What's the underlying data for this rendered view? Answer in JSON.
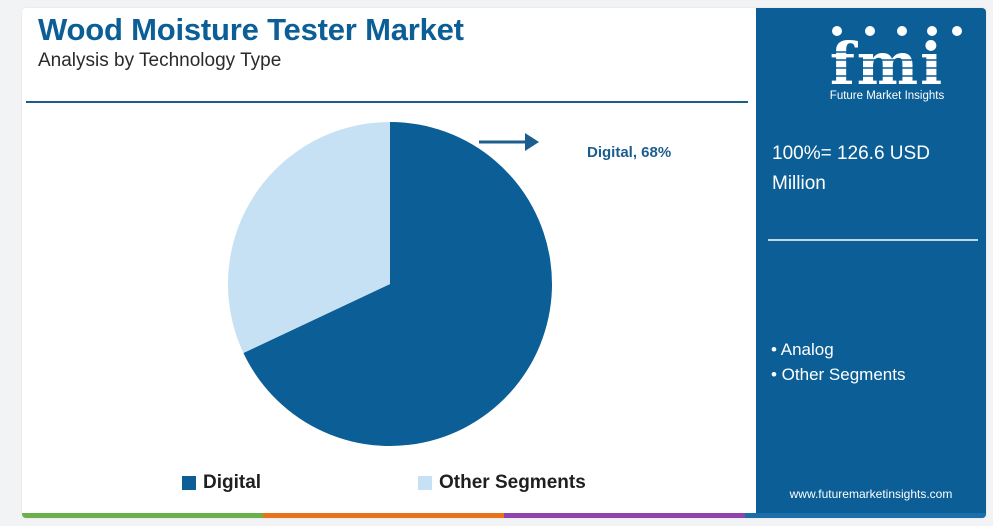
{
  "header": {
    "title": "Wood Moisture Tester Market",
    "subtitle": "Analysis by Technology Type"
  },
  "callout": {
    "label": "Digital, 68%"
  },
  "side_panel": {
    "logo_text": "fmi",
    "logo_subtitle": "Future Market Insights",
    "total": "100%= 126.6 USD Million",
    "bullets": [
      "• Analog",
      "• Other Segments"
    ],
    "website": "www.futuremarketinsights.com"
  },
  "colors": {
    "digital": "#0b5e96",
    "other_segments": "#c6e1f3",
    "panel": "#0b5e96",
    "bottom_bar": [
      "#6ab04c",
      "#e8731b",
      "#8e44ad",
      "#1b6ea8"
    ]
  },
  "chart_data": {
    "type": "pie",
    "title": "Wood Moisture Tester Market",
    "subtitle": "Analysis by Technology Type",
    "categories": [
      "Digital",
      "Other Segments"
    ],
    "values": [
      68,
      32
    ],
    "unit": "%",
    "legend_position": "bottom"
  }
}
